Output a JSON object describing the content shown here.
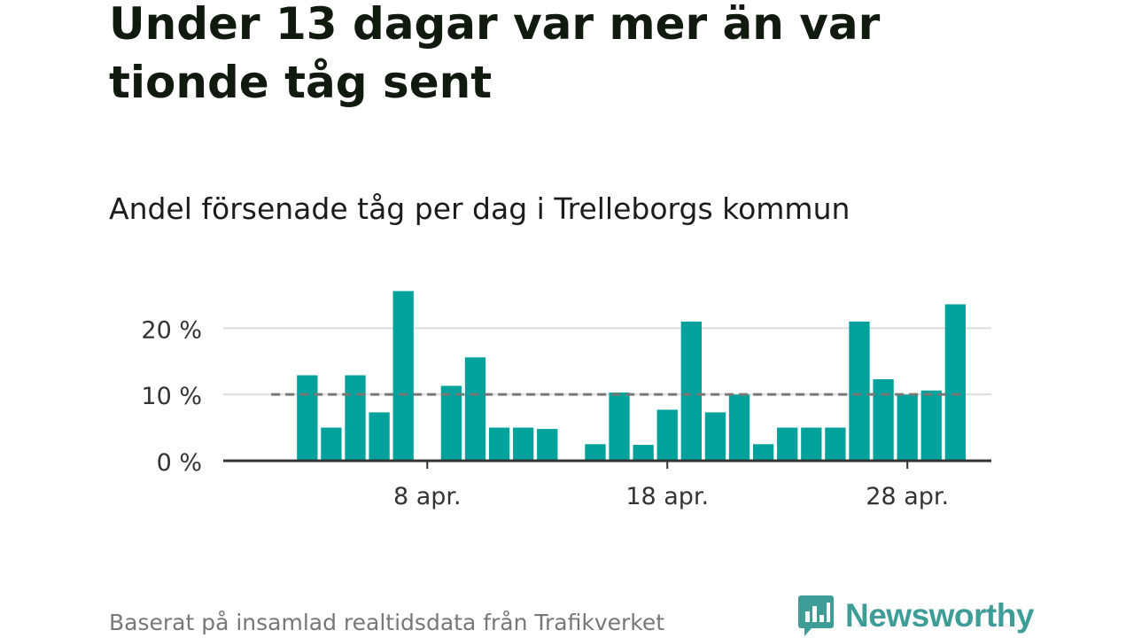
{
  "title": "Under 13 dagar var mer än var tionde tåg sent",
  "subtitle": "Andel försenade tåg per dag i Trelleborgs kommun",
  "footer": "Baserat på insamlad realtidsdata från Trafikverket",
  "brand": {
    "name": "Newsworthy",
    "icon": "newsworthy-logo-icon",
    "color": "#3f9d98"
  },
  "colors": {
    "bar": "#00a29b",
    "reference_line": "#777777",
    "grid": "#dddddd",
    "axis": "#333333"
  },
  "chart_data": {
    "type": "bar",
    "x_unit": "day of April",
    "x": [
      3,
      4,
      5,
      6,
      7,
      9,
      10,
      11,
      12,
      13,
      15,
      16,
      17,
      18,
      19,
      20,
      21,
      22,
      23,
      24,
      25,
      26,
      27,
      28,
      29,
      30
    ],
    "values": [
      12.9,
      5.0,
      12.9,
      7.3,
      25.6,
      11.3,
      15.6,
      5.0,
      5.0,
      4.8,
      2.5,
      10.3,
      2.4,
      7.7,
      21.0,
      7.3,
      10.0,
      2.5,
      5.0,
      5.0,
      5.0,
      21.0,
      12.3,
      10.0,
      10.6,
      23.6
    ],
    "reference_line": 10,
    "ylim": [
      0,
      27
    ],
    "yticks": [
      0,
      10,
      20
    ],
    "ytick_labels": [
      "0 %",
      "10 %",
      "20 %"
    ],
    "xlim": [
      -0.5,
      31.5
    ],
    "xticks": [
      8,
      18,
      28
    ],
    "xtick_labels": [
      "8 apr.",
      "18 apr.",
      "28 apr."
    ],
    "grid": true,
    "legend": "none"
  }
}
